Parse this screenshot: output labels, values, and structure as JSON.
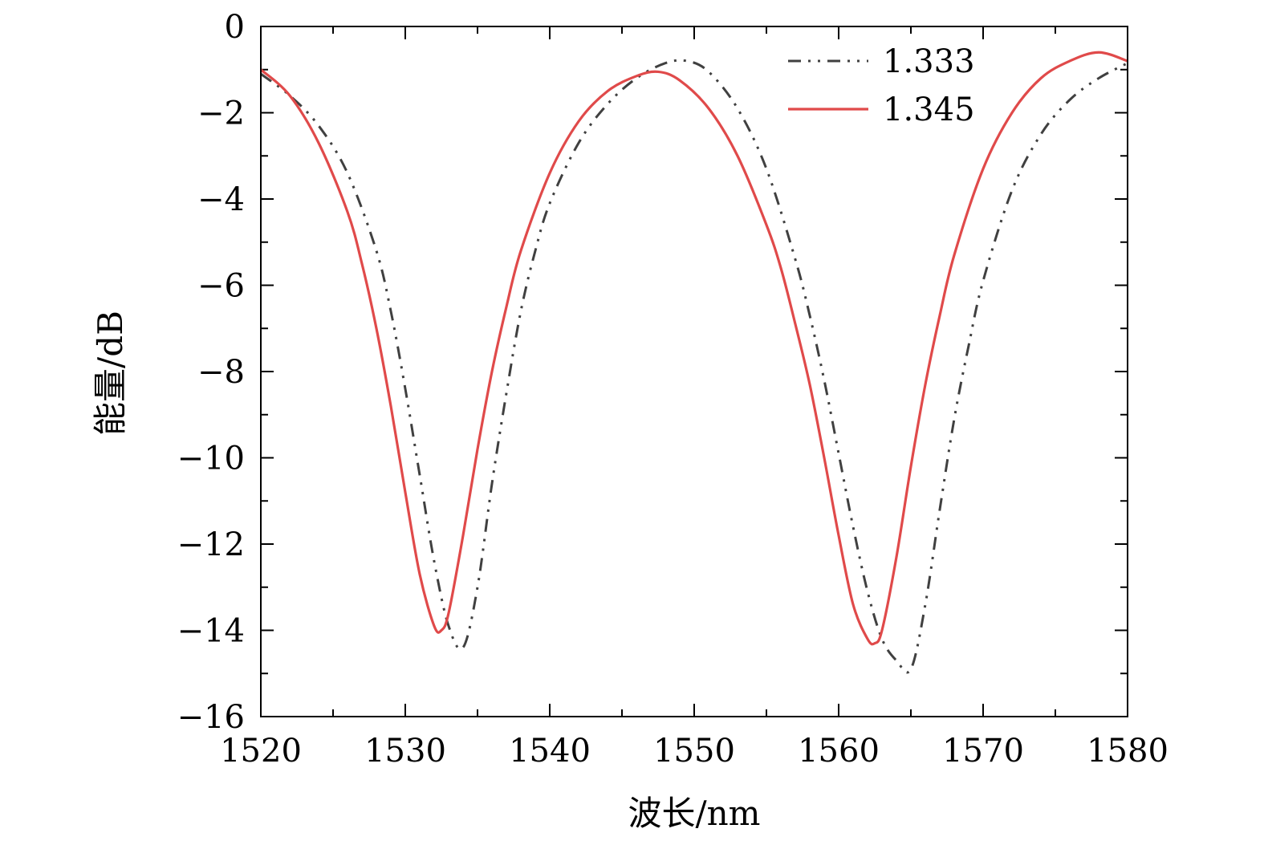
{
  "chart_data": {
    "type": "line",
    "title": "",
    "xlabel": "波长/nm",
    "ylabel": "能量/dB",
    "xlim": [
      1520,
      1580
    ],
    "ylim": [
      -16,
      0
    ],
    "x_ticks": [
      1520,
      1530,
      1540,
      1550,
      1560,
      1570,
      1580
    ],
    "x_tick_labels": [
      "1520",
      "1530",
      "1540",
      "1550",
      "1560",
      "1570",
      "1580"
    ],
    "y_ticks": [
      0,
      -2,
      -4,
      -6,
      -8,
      -10,
      -12,
      -14,
      -16
    ],
    "y_tick_labels": [
      "0",
      "−2",
      "−4",
      "−6",
      "−8",
      "−10",
      "−12",
      "−14",
      "−16"
    ],
    "grid": false,
    "legend_position": "top-right",
    "series": [
      {
        "name": "1.333",
        "style": "dash-dot-dot",
        "color": "#404040",
        "x": [
          1520,
          1522,
          1524,
          1526,
          1528,
          1529,
          1530,
          1531,
          1532,
          1533,
          1534,
          1535,
          1536,
          1537,
          1538,
          1539,
          1540,
          1542,
          1544,
          1546,
          1548,
          1549.5,
          1551,
          1553,
          1555,
          1557,
          1558,
          1559,
          1560,
          1561,
          1562,
          1563,
          1564,
          1565,
          1566,
          1567,
          1568,
          1569,
          1570,
          1572,
          1574,
          1576,
          1578,
          1580
        ],
        "y": [
          -1.1,
          -1.6,
          -2.3,
          -3.4,
          -5.2,
          -6.6,
          -8.4,
          -10.4,
          -12.4,
          -13.9,
          -14.4,
          -13.0,
          -10.6,
          -8.5,
          -6.6,
          -5.2,
          -4.1,
          -2.7,
          -1.8,
          -1.2,
          -0.85,
          -0.8,
          -1.05,
          -1.9,
          -3.3,
          -5.4,
          -6.7,
          -8.2,
          -9.9,
          -11.6,
          -13.1,
          -14.2,
          -14.7,
          -14.9,
          -13.4,
          -11.2,
          -9.1,
          -7.4,
          -5.9,
          -3.8,
          -2.5,
          -1.7,
          -1.2,
          -0.85
        ]
      },
      {
        "name": "1.345",
        "style": "solid",
        "color": "#e04a4a",
        "x": [
          1520,
          1522,
          1524,
          1526,
          1527,
          1528,
          1529,
          1530,
          1531,
          1532,
          1532.5,
          1533,
          1534,
          1535,
          1536,
          1537,
          1538,
          1540,
          1542,
          1544,
          1546,
          1547.5,
          1549,
          1551,
          1553,
          1555,
          1556,
          1557,
          1558,
          1559,
          1560,
          1561,
          1562,
          1562.5,
          1563,
          1564,
          1565,
          1566,
          1567,
          1568,
          1570,
          1572,
          1574,
          1576,
          1578,
          1580
        ],
        "y": [
          -1.0,
          -1.6,
          -2.7,
          -4.3,
          -5.5,
          -7.0,
          -8.8,
          -10.8,
          -12.7,
          -13.9,
          -14.0,
          -13.6,
          -11.8,
          -9.8,
          -8.0,
          -6.5,
          -5.2,
          -3.4,
          -2.2,
          -1.5,
          -1.15,
          -1.05,
          -1.25,
          -1.9,
          -3.0,
          -4.6,
          -5.6,
          -6.9,
          -8.3,
          -10.0,
          -11.8,
          -13.4,
          -14.2,
          -14.3,
          -14.0,
          -12.3,
          -10.2,
          -8.3,
          -6.7,
          -5.3,
          -3.3,
          -2.0,
          -1.2,
          -0.8,
          -0.6,
          -0.8
        ]
      }
    ]
  }
}
